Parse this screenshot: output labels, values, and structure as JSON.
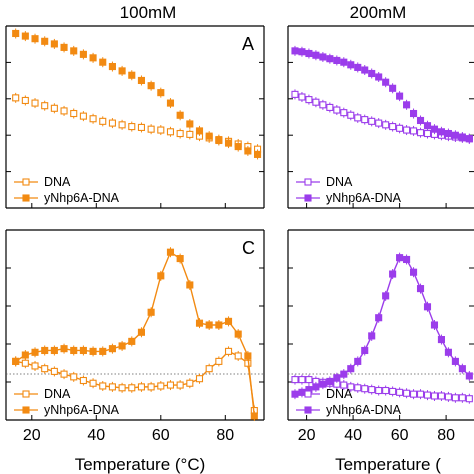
{
  "column_titles": [
    "100mM",
    "200mM"
  ],
  "colors": {
    "orange": "#F28A12",
    "purple": "#9B3DEB"
  },
  "chart_data": [
    {
      "type": "scatter",
      "panel_letter": "A",
      "xlim": [
        12,
        92
      ],
      "ylim": [
        0,
        1
      ],
      "legend_placement": "bottom-left",
      "series": [
        {
          "name": "DNA",
          "marker": "open-square",
          "x": [
            15,
            18,
            21,
            24,
            27,
            30,
            33,
            36,
            39,
            42,
            45,
            48,
            51,
            54,
            57,
            60,
            63,
            66,
            69,
            72,
            75,
            78,
            81,
            84,
            87,
            90
          ],
          "y": [
            0.61,
            0.595,
            0.58,
            0.565,
            0.55,
            0.535,
            0.52,
            0.505,
            0.49,
            0.475,
            0.465,
            0.455,
            0.445,
            0.44,
            0.43,
            0.425,
            0.415,
            0.405,
            0.4,
            0.39,
            0.38,
            0.37,
            0.36,
            0.345,
            0.33,
            0.315
          ]
        },
        {
          "name": "yNhp6A-DNA",
          "marker": "filled-square",
          "x": [
            15,
            18,
            21,
            24,
            27,
            30,
            33,
            36,
            39,
            42,
            45,
            48,
            51,
            54,
            57,
            60,
            63,
            66,
            69,
            72,
            75,
            78,
            81,
            84,
            87,
            90
          ],
          "y": [
            0.98,
            0.965,
            0.95,
            0.935,
            0.92,
            0.9,
            0.88,
            0.86,
            0.84,
            0.815,
            0.79,
            0.765,
            0.74,
            0.71,
            0.68,
            0.64,
            0.58,
            0.51,
            0.46,
            0.42,
            0.39,
            0.365,
            0.35,
            0.33,
            0.305,
            0.285
          ]
        }
      ]
    },
    {
      "type": "scatter",
      "panel_letter": "",
      "xlim": [
        12,
        92
      ],
      "ylim": [
        0,
        1
      ],
      "legend_placement": "bottom-left",
      "series": [
        {
          "name": "DNA",
          "marker": "open-square",
          "x": [
            15,
            18,
            21,
            24,
            27,
            30,
            33,
            36,
            39,
            42,
            45,
            48,
            51,
            54,
            57,
            60,
            63,
            66,
            69,
            72,
            75,
            78,
            81,
            84,
            87,
            90
          ],
          "y": [
            0.63,
            0.615,
            0.6,
            0.585,
            0.57,
            0.555,
            0.54,
            0.525,
            0.51,
            0.495,
            0.485,
            0.475,
            0.465,
            0.455,
            0.445,
            0.435,
            0.425,
            0.42,
            0.41,
            0.405,
            0.4,
            0.395,
            0.39,
            0.385,
            0.38,
            0.375
          ]
        },
        {
          "name": "yNhp6A-DNA",
          "marker": "filled-square",
          "x": [
            15,
            18,
            21,
            24,
            27,
            30,
            33,
            36,
            39,
            42,
            45,
            48,
            51,
            54,
            57,
            60,
            63,
            66,
            69,
            72,
            75,
            78,
            81,
            84,
            87,
            90
          ],
          "y": [
            0.88,
            0.875,
            0.865,
            0.855,
            0.845,
            0.835,
            0.825,
            0.815,
            0.8,
            0.785,
            0.77,
            0.75,
            0.73,
            0.7,
            0.665,
            0.62,
            0.57,
            0.52,
            0.48,
            0.45,
            0.43,
            0.415,
            0.405,
            0.395,
            0.385,
            0.375
          ]
        }
      ]
    },
    {
      "type": "line",
      "panel_letter": "C",
      "xlim": [
        12,
        92
      ],
      "ylim": [
        0,
        1
      ],
      "xticks": [
        20,
        40,
        60,
        80
      ],
      "xlabel": "Temperature (°C)",
      "legend_placement": "bottom-left",
      "series": [
        {
          "name": "DNA",
          "marker": "open-square",
          "x": [
            15,
            18,
            21,
            24,
            27,
            30,
            33,
            36,
            39,
            42,
            45,
            48,
            51,
            54,
            57,
            60,
            63,
            66,
            69,
            72,
            75,
            78,
            81,
            84,
            87,
            89
          ],
          "y": [
            0.3,
            0.29,
            0.275,
            0.26,
            0.245,
            0.23,
            0.215,
            0.195,
            0.18,
            0.165,
            0.16,
            0.155,
            0.155,
            0.16,
            0.16,
            0.165,
            0.17,
            0.17,
            0.18,
            0.205,
            0.26,
            0.3,
            0.355,
            0.33,
            0.29,
            0.03
          ]
        },
        {
          "name": "yNhp6A-DNA",
          "marker": "filled-square",
          "x": [
            15,
            18,
            21,
            24,
            27,
            30,
            33,
            36,
            39,
            42,
            45,
            48,
            51,
            54,
            57,
            60,
            63,
            66,
            69,
            72,
            75,
            78,
            81,
            84,
            87,
            89
          ],
          "y": [
            0.3,
            0.335,
            0.35,
            0.36,
            0.36,
            0.37,
            0.36,
            0.36,
            0.355,
            0.355,
            0.37,
            0.385,
            0.41,
            0.46,
            0.57,
            0.77,
            0.9,
            0.865,
            0.72,
            0.51,
            0.5,
            0.5,
            0.52,
            0.45,
            0.33,
            0.0
          ]
        }
      ]
    },
    {
      "type": "line",
      "panel_letter": "",
      "xlim": [
        12,
        92
      ],
      "ylim": [
        0,
        1
      ],
      "xticks": [
        20,
        40,
        60,
        80
      ],
      "xlabel": "Temperature (",
      "legend_placement": "bottom-left",
      "series": [
        {
          "name": "DNA",
          "marker": "open-square",
          "x": [
            15,
            18,
            21,
            24,
            27,
            30,
            33,
            36,
            39,
            42,
            45,
            48,
            51,
            54,
            57,
            60,
            63,
            66,
            69,
            72,
            75,
            78,
            81,
            84,
            87,
            90
          ],
          "y": [
            0.2,
            0.2,
            0.2,
            0.19,
            0.185,
            0.18,
            0.175,
            0.17,
            0.16,
            0.155,
            0.15,
            0.145,
            0.14,
            0.14,
            0.135,
            0.13,
            0.125,
            0.12,
            0.12,
            0.115,
            0.11,
            0.11,
            0.105,
            0.1,
            0.1,
            0.095
          ]
        },
        {
          "name": "yNhp6A-DNA",
          "marker": "filled-square",
          "x": [
            15,
            18,
            21,
            24,
            27,
            30,
            33,
            36,
            39,
            42,
            45,
            48,
            51,
            54,
            57,
            60,
            63,
            66,
            69,
            72,
            75,
            78,
            81,
            84,
            87,
            90
          ],
          "y": [
            0.12,
            0.13,
            0.145,
            0.16,
            0.175,
            0.19,
            0.21,
            0.23,
            0.26,
            0.3,
            0.36,
            0.44,
            0.54,
            0.66,
            0.78,
            0.87,
            0.86,
            0.79,
            0.7,
            0.6,
            0.5,
            0.42,
            0.35,
            0.3,
            0.26,
            0.22
          ]
        }
      ]
    }
  ]
}
